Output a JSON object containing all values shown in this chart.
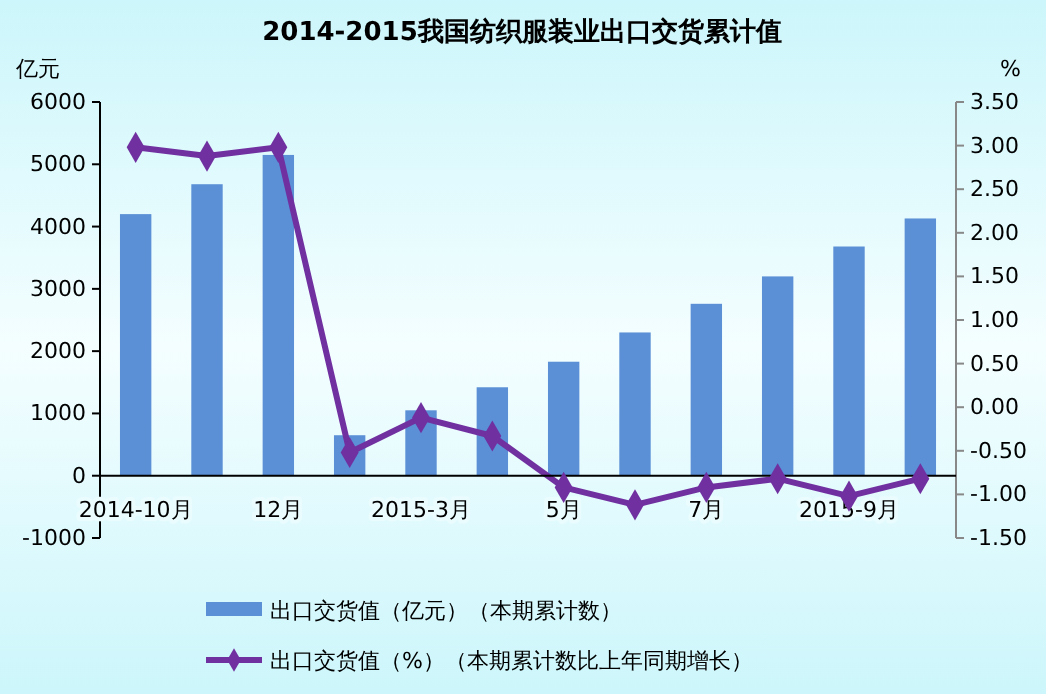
{
  "chart_data": {
    "type": "bar",
    "title": "2014-2015我国纺织服装业出口交货累计值",
    "ylabel": "亿元",
    "y2label": "%",
    "categories": [
      "2014-10月",
      null,
      "12月",
      null,
      "2015-3月",
      null,
      "5月",
      null,
      "7月",
      null,
      "2015-9月",
      null
    ],
    "series": [
      {
        "name": "出口交货值（亿元）（本期累计数）",
        "color": "#5b8fd6",
        "values": [
          4200,
          4680,
          5150,
          650,
          1050,
          1420,
          1830,
          2300,
          2760,
          3200,
          3680,
          4130
        ]
      },
      {
        "name": "出口交货值（%）（本期累计数比上年同期增长）",
        "type": "line",
        "axis": "y2",
        "color": "#7030a0",
        "marker": "diamond",
        "values": [
          2.98,
          2.88,
          2.98,
          -0.52,
          -0.12,
          -0.33,
          -0.92,
          -1.12,
          -0.92,
          -0.82,
          -1.02,
          -0.82
        ]
      }
    ],
    "ylim": [
      -1000,
      6000
    ],
    "yticks": [
      -1000,
      0,
      1000,
      2000,
      3000,
      4000,
      5000,
      6000
    ],
    "y2lim": [
      -1.5,
      3.5
    ],
    "y2ticks": [
      {
        "value": -1.5,
        "label": "-1.50"
      },
      {
        "value": -1,
        "label": "-1.00"
      },
      {
        "value": -0.5,
        "label": "-0.50"
      },
      {
        "value": 0,
        "label": "0.00"
      },
      {
        "value": 0.5,
        "label": "0.50"
      },
      {
        "value": 1,
        "label": "1.00"
      },
      {
        "value": 1.5,
        "label": "1.50"
      },
      {
        "value": 2,
        "label": "2.00"
      },
      {
        "value": 2.5,
        "label": "2.50"
      },
      {
        "value": 3,
        "label": "3.00"
      },
      {
        "value": 3.5,
        "label": "3.50"
      }
    ],
    "legend": "bottom",
    "grid": false
  }
}
